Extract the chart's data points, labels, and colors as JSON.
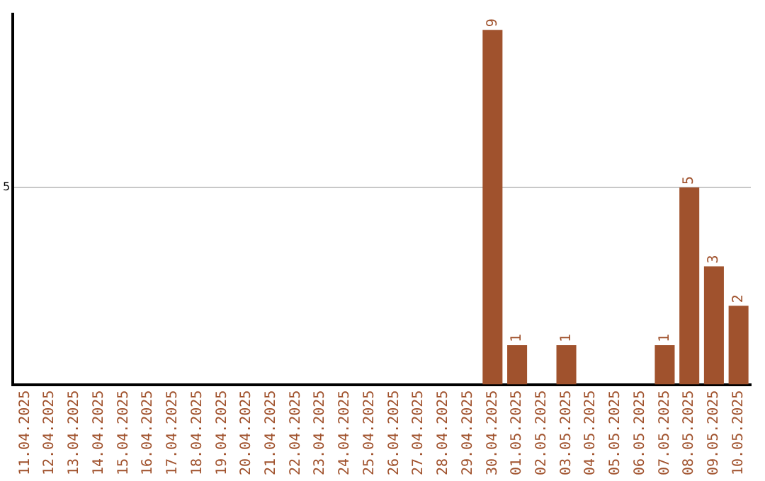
{
  "chart_data": {
    "type": "bar",
    "categories": [
      "11.04.2025",
      "12.04.2025",
      "13.04.2025",
      "14.04.2025",
      "15.04.2025",
      "16.04.2025",
      "17.04.2025",
      "18.04.2025",
      "19.04.2025",
      "20.04.2025",
      "21.04.2025",
      "22.04.2025",
      "23.04.2025",
      "24.04.2025",
      "25.04.2025",
      "26.04.2025",
      "27.04.2025",
      "28.04.2025",
      "29.04.2025",
      "30.04.2025",
      "01.05.2025",
      "02.05.2025",
      "03.05.2025",
      "04.05.2025",
      "05.05.2025",
      "06.05.2025",
      "07.05.2025",
      "08.05.2025",
      "09.05.2025",
      "10.05.2025"
    ],
    "values": [
      null,
      null,
      null,
      null,
      null,
      null,
      null,
      null,
      null,
      null,
      null,
      null,
      null,
      null,
      null,
      null,
      null,
      null,
      null,
      9,
      1,
      null,
      1,
      null,
      null,
      null,
      1,
      5,
      3,
      2
    ],
    "color": "#a0522d",
    "ylim": [
      0,
      9.4
    ],
    "yticks": [
      5
    ],
    "grid": "y",
    "data_labels": true,
    "legend": false
  }
}
